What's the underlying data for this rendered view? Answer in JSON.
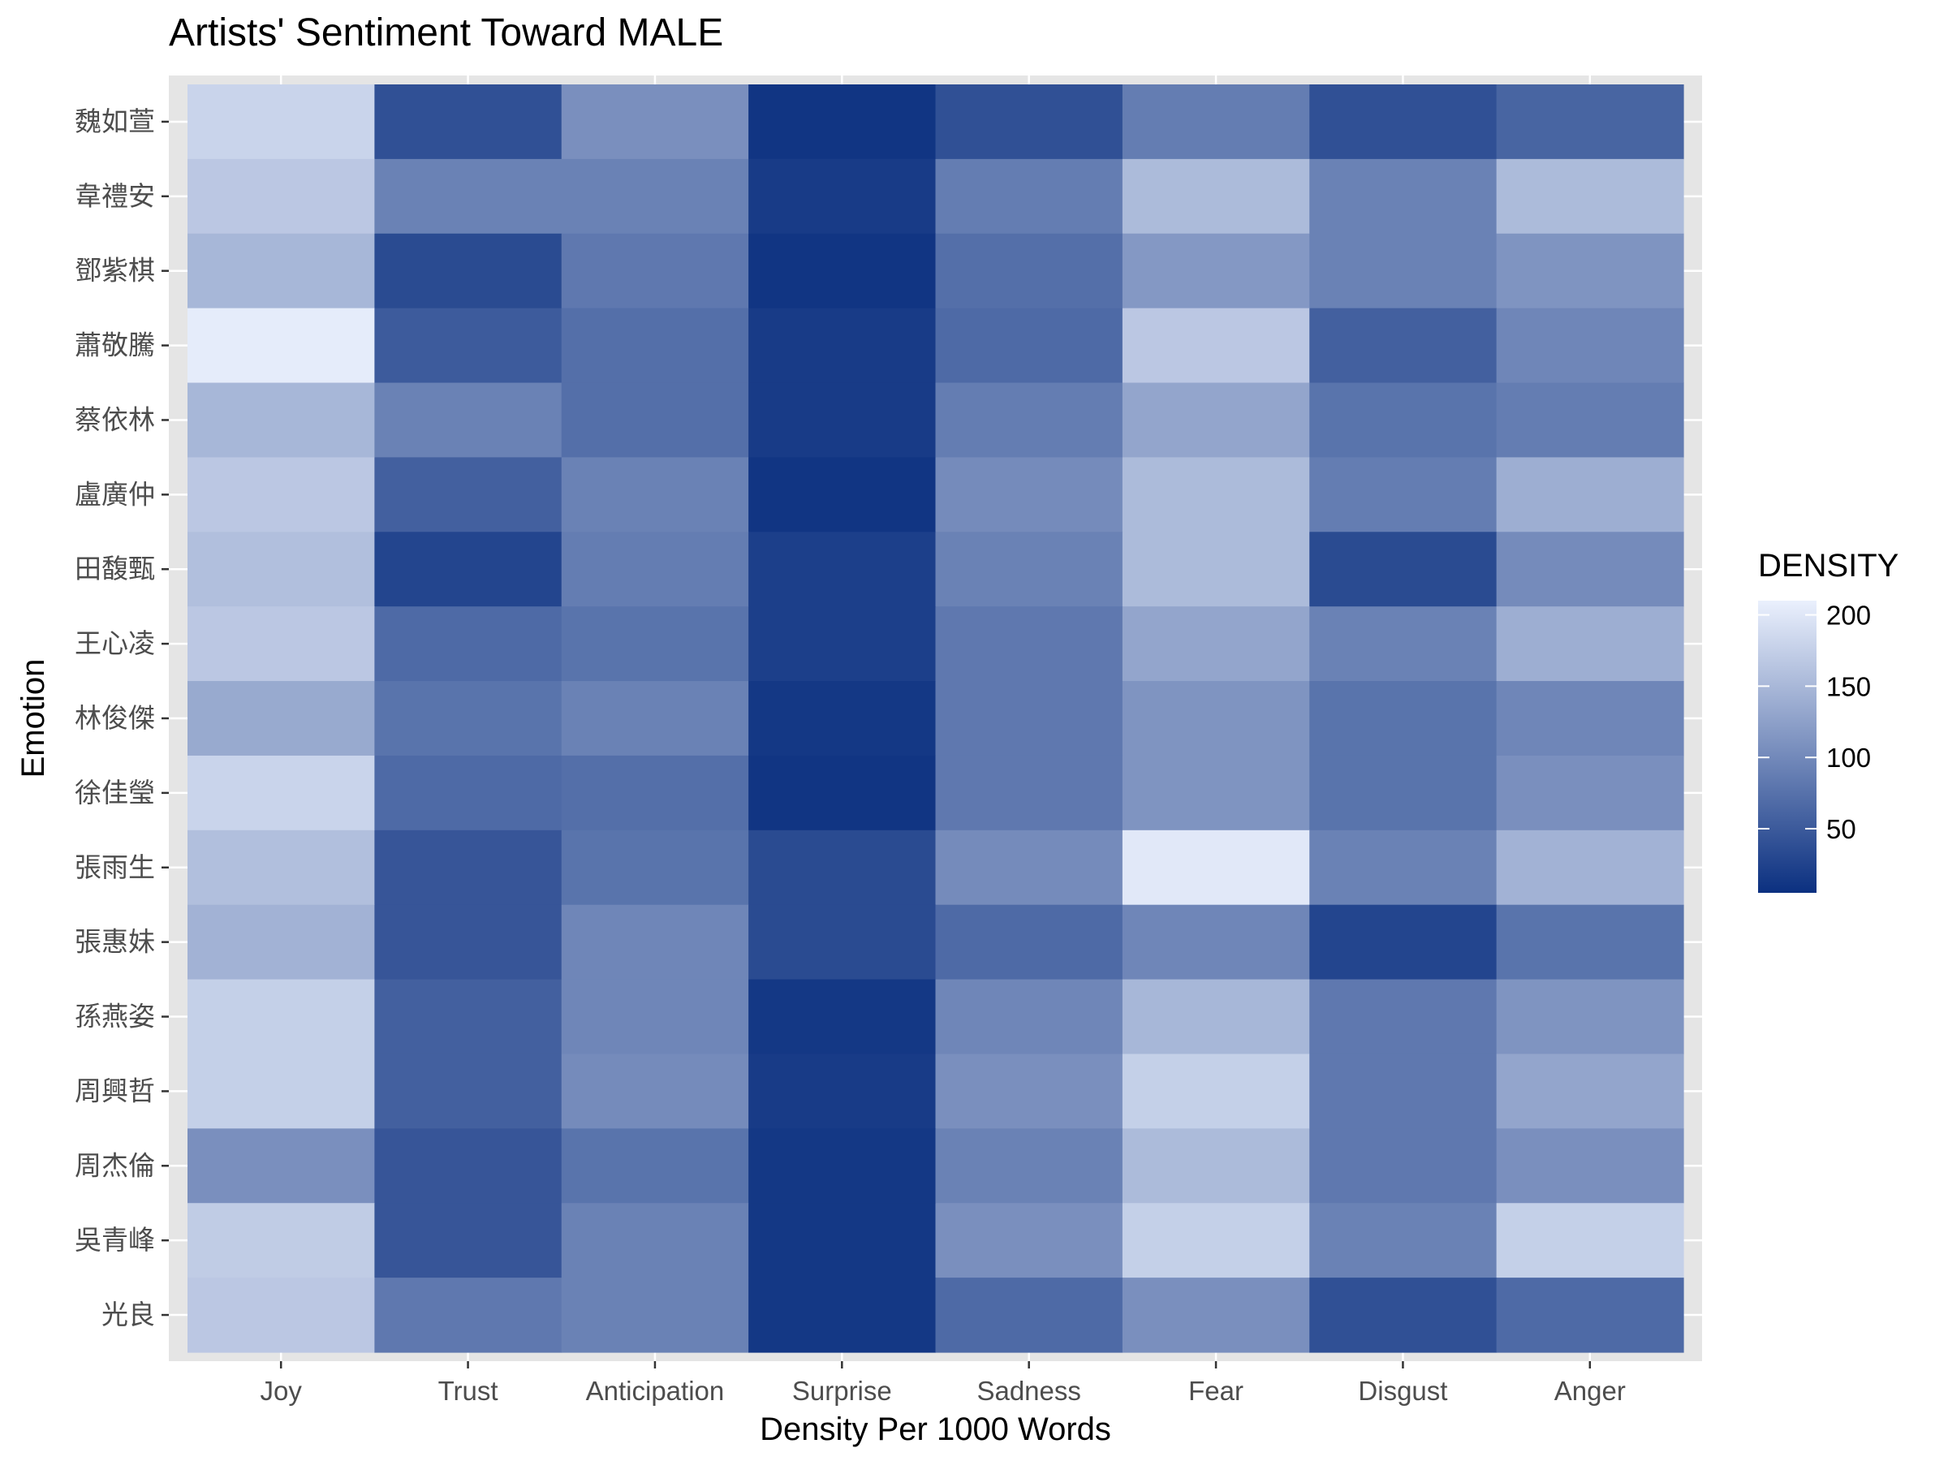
{
  "chart_data": {
    "type": "heatmap",
    "title": "Artists' Sentiment Toward MALE",
    "xlabel": "Density Per 1000 Words",
    "ylabel": "Emotion",
    "x": [
      "Joy",
      "Trust",
      "Anticipation",
      "Surprise",
      "Sadness",
      "Fear",
      "Disgust",
      "Anger"
    ],
    "y": [
      "魏如萱",
      "韋禮安",
      "鄧紫棋",
      "蕭敬騰",
      "蔡依林",
      "盧廣仲",
      "田馥甄",
      "王心凌",
      "林俊傑",
      "徐佳瑩",
      "張雨生",
      "張惠妹",
      "孫燕姿",
      "周興哲",
      "周杰倫",
      "吳青峰",
      "光良"
    ],
    "values": [
      [
        175,
        30,
        95,
        8,
        30,
        75,
        30,
        50
      ],
      [
        160,
        80,
        80,
        12,
        75,
        145,
        80,
        145
      ],
      [
        140,
        25,
        70,
        8,
        60,
        105,
        80,
        100
      ],
      [
        205,
        40,
        60,
        12,
        55,
        160,
        45,
        85
      ],
      [
        140,
        80,
        60,
        12,
        75,
        120,
        65,
        75
      ],
      [
        160,
        45,
        80,
        8,
        90,
        145,
        75,
        130
      ],
      [
        150,
        20,
        75,
        15,
        80,
        145,
        25,
        90
      ],
      [
        160,
        55,
        65,
        15,
        70,
        120,
        80,
        130
      ],
      [
        125,
        65,
        80,
        10,
        70,
        100,
        65,
        85
      ],
      [
        175,
        55,
        60,
        8,
        70,
        100,
        65,
        95
      ],
      [
        150,
        35,
        65,
        25,
        90,
        200,
        80,
        135
      ],
      [
        135,
        35,
        85,
        25,
        55,
        85,
        20,
        65
      ],
      [
        170,
        45,
        85,
        10,
        85,
        140,
        70,
        100
      ],
      [
        170,
        45,
        90,
        12,
        95,
        170,
        70,
        120
      ],
      [
        95,
        35,
        65,
        10,
        80,
        145,
        70,
        95
      ],
      [
        165,
        35,
        80,
        10,
        95,
        170,
        80,
        170
      ],
      [
        160,
        70,
        80,
        10,
        55,
        95,
        30,
        55
      ]
    ],
    "legend": {
      "title": "DENSITY",
      "position": "right",
      "breaks": [
        50,
        100,
        150,
        200
      ],
      "min": 5,
      "max": 210,
      "low_color": "#0b3080",
      "high_color": "#eaf0fd"
    },
    "grid": true,
    "panel_background": "#e5e5e5"
  }
}
